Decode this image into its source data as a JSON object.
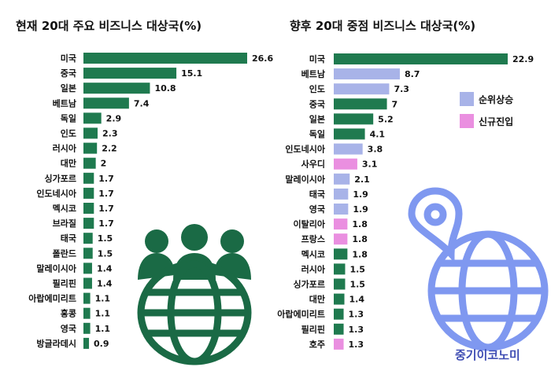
{
  "colors": {
    "existing": "#1f7a4f",
    "rank_up": "#a8b3e8",
    "new_entry": "#ea8fe0",
    "people_icon": "#1a6a45",
    "globe_pin_icon": "#7f98f0",
    "brand": "#3f4db3"
  },
  "icons": {
    "left": "people-globe-icon",
    "right": "globe-pin-icon"
  },
  "legend": {
    "rank_up": "순위상승",
    "new_entry": "신규진입"
  },
  "brand": "중기이코노미",
  "chart_data": [
    {
      "type": "bar",
      "orientation": "horizontal",
      "title": "현재 20대 주요 비즈니스 대상국(%)",
      "categories": [
        "미국",
        "중국",
        "일본",
        "베트남",
        "독일",
        "인도",
        "러시아",
        "대만",
        "싱가포르",
        "인도네시아",
        "멕시코",
        "브라질",
        "태국",
        "폴란드",
        "말레이시아",
        "필리핀",
        "아랍에미리트",
        "홍콩",
        "영국",
        "방글라데시"
      ],
      "values": [
        26.6,
        15.1,
        10.8,
        7.4,
        2.9,
        2.3,
        2.2,
        2,
        1.7,
        1.7,
        1.7,
        1.7,
        1.5,
        1.5,
        1.4,
        1.4,
        1.1,
        1.1,
        1.1,
        0.9
      ],
      "xlim": [
        0,
        26.6
      ]
    },
    {
      "type": "bar",
      "orientation": "horizontal",
      "title": "향후 20대 중점 비즈니스 대상국(%)",
      "categories": [
        "미국",
        "베트남",
        "인도",
        "중국",
        "일본",
        "독일",
        "인도네시아",
        "사우디",
        "말레이시아",
        "태국",
        "영국",
        "이탈리아",
        "프랑스",
        "멕시코",
        "러시아",
        "싱가포르",
        "대만",
        "아랍에미리트",
        "필리핀",
        "호주"
      ],
      "values": [
        22.9,
        8.7,
        7.3,
        7,
        5.2,
        4.1,
        3.8,
        3.1,
        2.1,
        1.9,
        1.9,
        1.8,
        1.8,
        1.8,
        1.5,
        1.5,
        1.4,
        1.3,
        1.3,
        1.3
      ],
      "status": [
        "existing",
        "rank_up",
        "rank_up",
        "existing",
        "existing",
        "existing",
        "rank_up",
        "new_entry",
        "rank_up",
        "rank_up",
        "rank_up",
        "new_entry",
        "new_entry",
        "existing",
        "existing",
        "existing",
        "existing",
        "existing",
        "existing",
        "new_entry"
      ],
      "xlim": [
        0,
        22.9
      ]
    }
  ]
}
